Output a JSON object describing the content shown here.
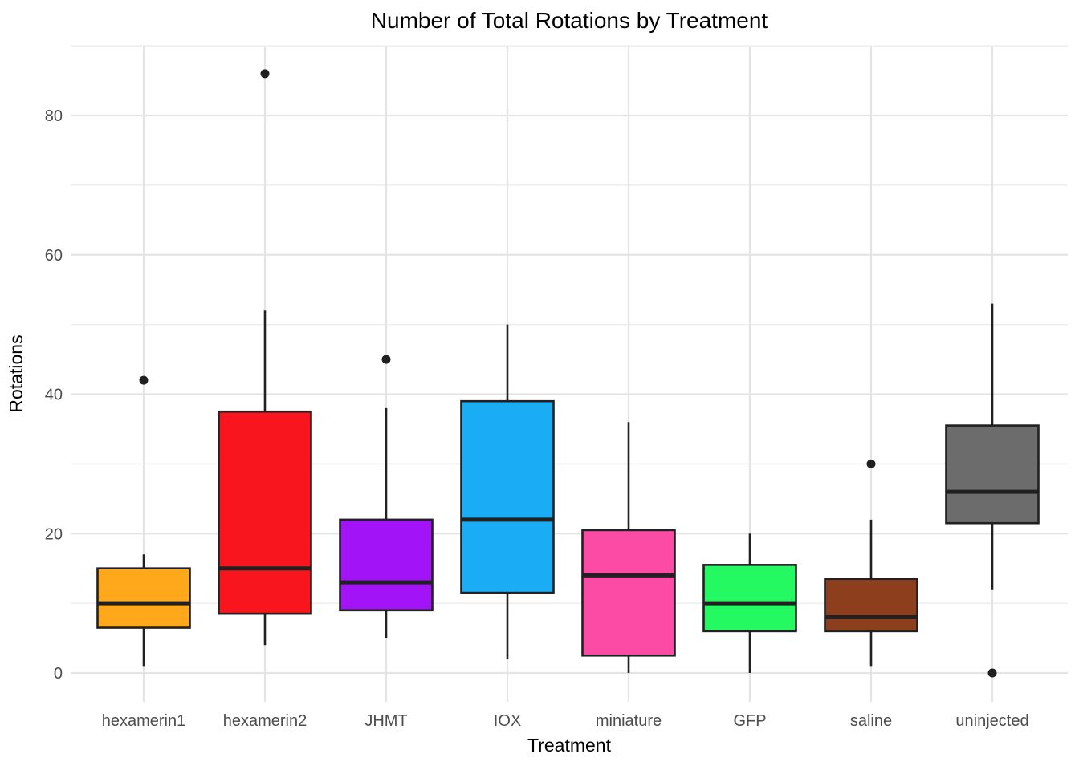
{
  "header": {
    "title": "Number of Total Rotations by Treatment"
  },
  "chart_data": {
    "type": "boxplot",
    "title": "Number of Total Rotations by Treatment",
    "xlabel": "Treatment",
    "ylabel": "Rotations",
    "ylim": [
      -4,
      90
    ],
    "y_major_ticks": [
      0,
      20,
      40,
      60,
      80
    ],
    "y_minor_gridlines": [
      10,
      30,
      50,
      70,
      90
    ],
    "grid": "on",
    "categories": [
      "hexamerin1",
      "hexamerin2",
      "JHMT",
      "IOX",
      "miniature",
      "GFP",
      "saline",
      "uninjected"
    ],
    "series": [
      {
        "name": "hexamerin1",
        "color": "#FFA81C",
        "min": 1,
        "q1": 6.5,
        "median": 10,
        "q3": 15,
        "max": 17,
        "outliers": [
          42
        ]
      },
      {
        "name": "hexamerin2",
        "color": "#F8151E",
        "min": 4,
        "q1": 8.5,
        "median": 15,
        "q3": 37.5,
        "max": 52,
        "outliers": [
          86
        ]
      },
      {
        "name": "JHMT",
        "color": "#A213F8",
        "min": 5,
        "q1": 9,
        "median": 13,
        "q3": 22,
        "max": 38,
        "outliers": [
          45
        ]
      },
      {
        "name": "IOX",
        "color": "#1BACF6",
        "min": 2,
        "q1": 11.5,
        "median": 22,
        "q3": 39,
        "max": 50,
        "outliers": []
      },
      {
        "name": "miniature",
        "color": "#FB4BA4",
        "min": 0,
        "q1": 2.5,
        "median": 14,
        "q3": 20.5,
        "max": 36,
        "outliers": []
      },
      {
        "name": "GFP",
        "color": "#24F961",
        "min": 0,
        "q1": 6,
        "median": 10,
        "q3": 15.5,
        "max": 20,
        "outliers": []
      },
      {
        "name": "saline",
        "color": "#8C3E1D",
        "min": 1,
        "q1": 6,
        "median": 8,
        "q3": 13.5,
        "max": 22,
        "outliers": [
          30
        ]
      },
      {
        "name": "uninjected",
        "color": "#6C6C6C",
        "min": 12,
        "q1": 21.5,
        "median": 26,
        "q3": 35.5,
        "max": 53,
        "outliers": [
          0
        ]
      }
    ],
    "colors": {
      "grid_major": "#E4E4E4",
      "grid_minor": "#EDEDED",
      "box_stroke": "#212121",
      "median_stroke": "#212121",
      "outlier_fill": "#1F1F1F",
      "tick_label": "#4D4D4D",
      "title_text": "#000000",
      "background": "#FFFFFF"
    },
    "legend": "none"
  }
}
